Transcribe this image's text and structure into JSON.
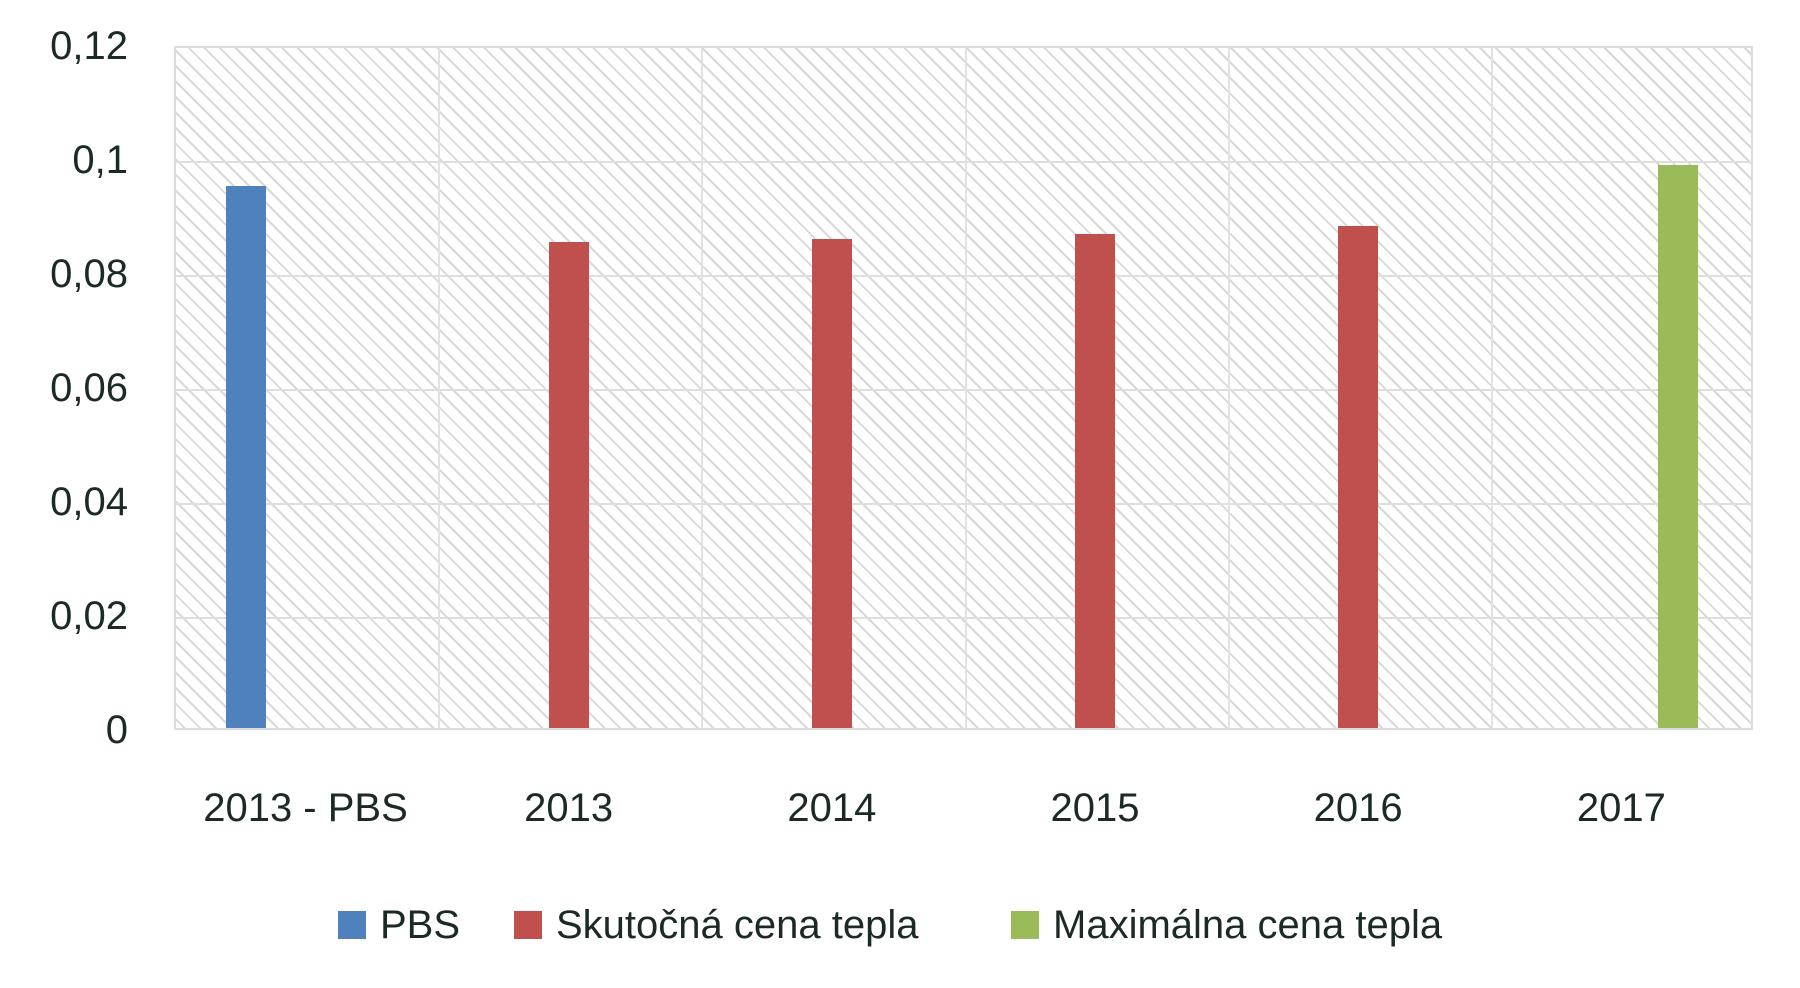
{
  "chart_data": {
    "type": "bar",
    "title": "",
    "xlabel": "",
    "ylabel": "",
    "ylim": [
      0,
      0.12
    ],
    "yticks": [
      "0",
      "0,02",
      "0,04",
      "0,06",
      "0,08",
      "0,1",
      "0,12"
    ],
    "ytick_values": [
      0,
      0.02,
      0.04,
      0.06,
      0.08,
      0.1,
      0.12
    ],
    "grid": true,
    "legend_position": "bottom",
    "categories": [
      "2013 - PBS",
      "2013",
      "2014",
      "2015",
      "2016",
      "2017"
    ],
    "series": [
      {
        "name": "PBS",
        "color": "#4f81bd",
        "values": [
          0.0954,
          null,
          null,
          null,
          null,
          null
        ]
      },
      {
        "name": "Skutočná cena tepla",
        "color": "#c0504d",
        "values": [
          null,
          0.0857,
          0.0861,
          0.0871,
          0.0884,
          null
        ]
      },
      {
        "name": "Maximálna cena tepla",
        "color": "#9bbb59",
        "values": [
          null,
          null,
          null,
          null,
          null,
          0.0991
        ]
      }
    ]
  },
  "legend": {
    "items": [
      {
        "label": "PBS",
        "color": "#4f81bd"
      },
      {
        "label": "Skutočná cena tepla",
        "color": "#c0504d"
      },
      {
        "label": "Maximálna cena tepla",
        "color": "#9bbb59"
      }
    ]
  },
  "colors": {
    "text": "#1c2a24",
    "grid": "#dedede",
    "hatch": "#d8d8d8"
  }
}
